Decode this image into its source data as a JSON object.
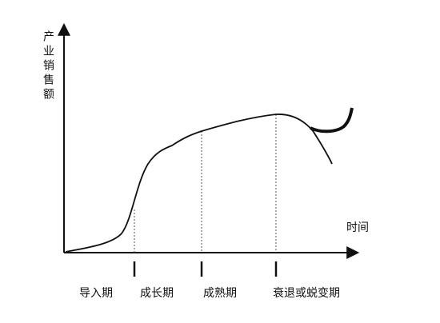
{
  "axes": {
    "y_label": "产业销售额",
    "x_label": "时间"
  },
  "stages": [
    {
      "label": "导入期"
    },
    {
      "label": "成长期"
    },
    {
      "label": "成熟期"
    },
    {
      "label": "衰退或蜕变期"
    }
  ]
}
